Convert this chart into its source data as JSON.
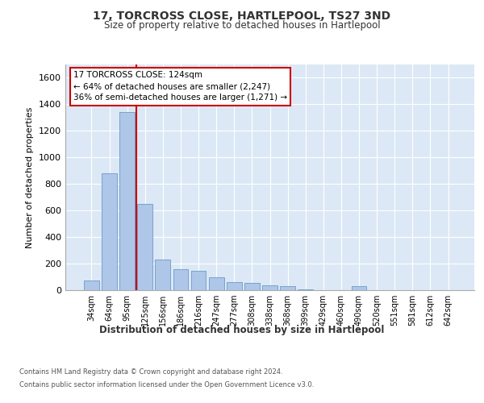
{
  "title": "17, TORCROSS CLOSE, HARTLEPOOL, TS27 3ND",
  "subtitle": "Size of property relative to detached houses in Hartlepool",
  "xlabel": "Distribution of detached houses by size in Hartlepool",
  "ylabel": "Number of detached properties",
  "categories": [
    "34sqm",
    "64sqm",
    "95sqm",
    "125sqm",
    "156sqm",
    "186sqm",
    "216sqm",
    "247sqm",
    "277sqm",
    "308sqm",
    "338sqm",
    "368sqm",
    "399sqm",
    "429sqm",
    "460sqm",
    "490sqm",
    "520sqm",
    "551sqm",
    "581sqm",
    "612sqm",
    "642sqm"
  ],
  "values": [
    75,
    880,
    1340,
    650,
    230,
    155,
    145,
    95,
    60,
    55,
    35,
    30,
    5,
    0,
    0,
    30,
    0,
    0,
    0,
    0,
    0
  ],
  "bar_color": "#aec6e8",
  "bar_edge_color": "#5a8fc0",
  "bg_color": "#dce8f5",
  "grid_color": "#ffffff",
  "vline_color": "#cc0000",
  "annotation_text": "17 TORCROSS CLOSE: 124sqm\n← 64% of detached houses are smaller (2,247)\n36% of semi-detached houses are larger (1,271) →",
  "annotation_box_color": "#cc0000",
  "ylim": [
    0,
    1700
  ],
  "yticks": [
    0,
    200,
    400,
    600,
    800,
    1000,
    1200,
    1400,
    1600
  ],
  "footer_line1": "Contains HM Land Registry data © Crown copyright and database right 2024.",
  "footer_line2": "Contains public sector information licensed under the Open Government Licence v3.0."
}
